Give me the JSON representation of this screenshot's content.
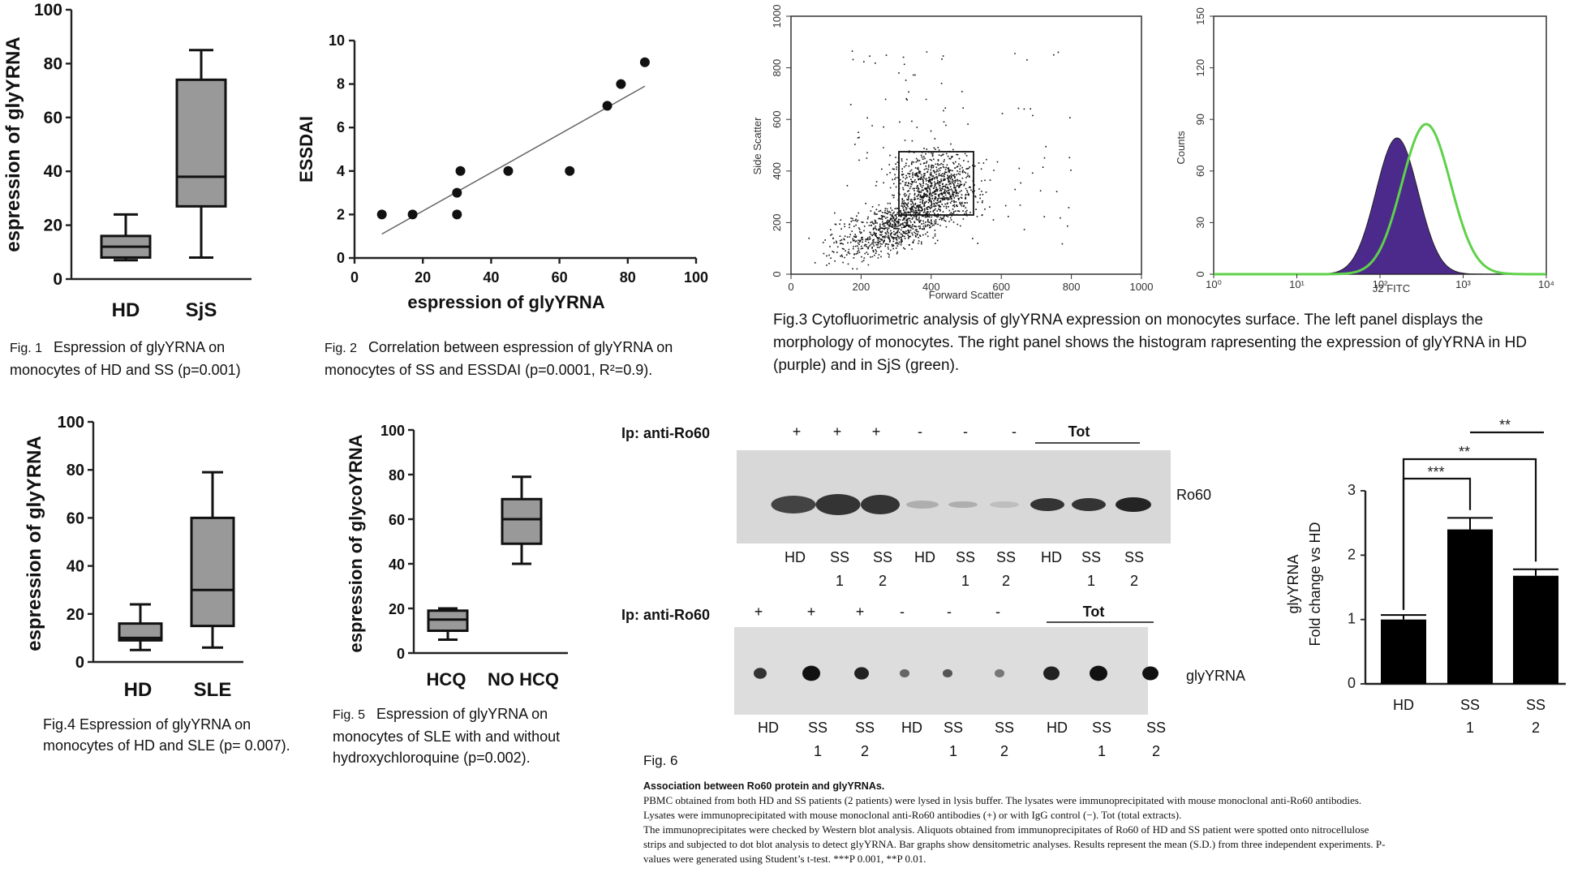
{
  "fig1": {
    "caption_num": "Fig. 1",
    "caption": "Espression of glyYRNA on monocytes of HD and SS (p=0.001)",
    "chart_data": {
      "type": "box",
      "ylabel": "espression of glyYRNA",
      "ylim": [
        0,
        100
      ],
      "yticks": [
        "0",
        "20",
        "40",
        "60",
        "80",
        "100"
      ],
      "categories": [
        "HD",
        "SjS"
      ],
      "boxes": [
        {
          "min": 7,
          "q1": 8,
          "median": 12,
          "q3": 16,
          "max": 24
        },
        {
          "min": 8,
          "q1": 27,
          "median": 38,
          "q3": 74,
          "max": 85
        }
      ]
    }
  },
  "fig2": {
    "caption_num": "Fig. 2",
    "caption": "Correlation between espression of glyYRNA on monocytes of SS and ESSDAI (p=0.0001, R²=0.9).",
    "chart_data": {
      "type": "scatter",
      "xlabel": "espression of glyYRNA",
      "ylabel": "ESSDAI",
      "xlim": [
        0,
        100
      ],
      "ylim": [
        0,
        10
      ],
      "xticks": [
        "0",
        "20",
        "40",
        "60",
        "80",
        "100"
      ],
      "yticks": [
        "0",
        "2",
        "4",
        "6",
        "8",
        "10"
      ],
      "points": [
        [
          8,
          2
        ],
        [
          17,
          2
        ],
        [
          30,
          2
        ],
        [
          30,
          3
        ],
        [
          31,
          4
        ],
        [
          45,
          4
        ],
        [
          63,
          4
        ],
        [
          74,
          7
        ],
        [
          78,
          8
        ],
        [
          85,
          9
        ]
      ],
      "fit_line": [
        [
          8,
          1.1
        ],
        [
          85,
          7.9
        ]
      ]
    }
  },
  "fig3": {
    "caption": "Fig.3 Cytofluorimetric analysis of glyYRNA expression on monocytes surface. The left panel displays the morphology of monocytes. The right panel shows the histogram rapresenting the expression of glyYRNA in HD (purple) and in SjS (green).",
    "scatter": {
      "xlabel": "Forward Scatter",
      "ylabel": "Side Scatter",
      "xticks": [
        "0",
        "200",
        "400",
        "600",
        "800",
        "1000"
      ],
      "yticks": [
        "0",
        "200",
        "400",
        "600",
        "800",
        "1000"
      ]
    },
    "histogram": {
      "xlabel": "J2 FITC",
      "ylabel": "Counts",
      "xticks": [
        "10⁰",
        "10¹",
        "10²",
        "10³",
        "10⁴"
      ],
      "yticks": [
        "0",
        "30",
        "60",
        "90",
        "120",
        "150"
      ],
      "hd_color": "#4b2a8c",
      "sjs_color": "#5fd14a"
    }
  },
  "fig4": {
    "caption": "Fig.4 Espression of glyYRNA on monocytes of HD and SLE (p= 0.007).",
    "chart_data": {
      "type": "box",
      "ylabel": "espression of glyYRNA",
      "ylim": [
        0,
        100
      ],
      "yticks": [
        "0",
        "20",
        "40",
        "60",
        "80",
        "100"
      ],
      "categories": [
        "HD",
        "SLE"
      ],
      "boxes": [
        {
          "min": 5,
          "q1": 9,
          "median": 10,
          "q3": 16,
          "max": 24
        },
        {
          "min": 6,
          "q1": 15,
          "median": 30,
          "q3": 60,
          "max": 79
        }
      ]
    }
  },
  "fig5": {
    "caption_num": "Fig. 5",
    "caption": "Espression of glyYRNA on monocytes of SLE with and without hydroxychloroquine (p=0.002).",
    "chart_data": {
      "type": "box",
      "ylabel": "espression of glycoYRNA",
      "ylim": [
        0,
        100
      ],
      "yticks": [
        "0",
        "20",
        "40",
        "60",
        "80",
        "100"
      ],
      "categories": [
        "HCQ",
        "NO HCQ"
      ],
      "boxes": [
        {
          "min": 6,
          "q1": 10,
          "median": 15,
          "q3": 19,
          "max": 20
        },
        {
          "min": 40,
          "q1": 49,
          "median": 60,
          "q3": 69,
          "max": 79
        }
      ]
    }
  },
  "fig6": {
    "label": "Fig. 6",
    "ip_label": "Ip: anti-Ro60",
    "signs": [
      "+",
      "+",
      "+",
      "-",
      "-",
      "-"
    ],
    "tot": "Tot",
    "ro60": "Ro60",
    "glyyrna": "glyYRNA",
    "lanes": [
      "HD",
      "SS",
      "SS",
      "HD",
      "SS",
      "SS",
      "HD",
      "SS",
      "SS"
    ],
    "lane_sub": [
      "",
      "1",
      "2",
      "",
      "1",
      "2",
      "",
      "1",
      "2"
    ],
    "chart_data": {
      "type": "bar",
      "categories": [
        "HD",
        "SS",
        "SS"
      ],
      "category_sub": [
        "",
        "1",
        "2"
      ],
      "values": [
        1.0,
        2.4,
        1.68
      ],
      "errors": [
        0.07,
        0.18,
        0.1
      ],
      "ylabel_1": "glyYRNA",
      "ylabel_2": "Fold change vs HD",
      "ylim": [
        0,
        3
      ],
      "yticks": [
        "0",
        "1",
        "2",
        "3"
      ],
      "significance": [
        "***",
        "**",
        "**"
      ]
    },
    "caption_title": "Association between Ro60 protein and glyYRNAs.",
    "caption_l1": "PBMC obtained from both HD and SS patients (2 patients) were lysed in lysis buffer. The lysates were immunoprecipitated with mouse monoclonal anti-Ro60 antibodies.",
    "caption_l2": "Lysates were immunoprecipitated with mouse monoclonal anti-Ro60 antibodies (+) or with IgG control (−). Tot (total extracts).",
    "caption_l3": "The immunoprecipitates were checked by Western blot analysis. Aliquots obtained from immunoprecipitates of Ro60 of HD and SS patient were spotted onto nitrocellulose",
    "caption_l4": "strips and subjected to dot blot analysis to detect glyYRNA. Bar graphs show densitometric analyses. Results represent the mean (S.D.) from three independent experiments. P-",
    "caption_l5": "values were generated using Student’s t-test. ***P  0.001, **P  0.01."
  }
}
